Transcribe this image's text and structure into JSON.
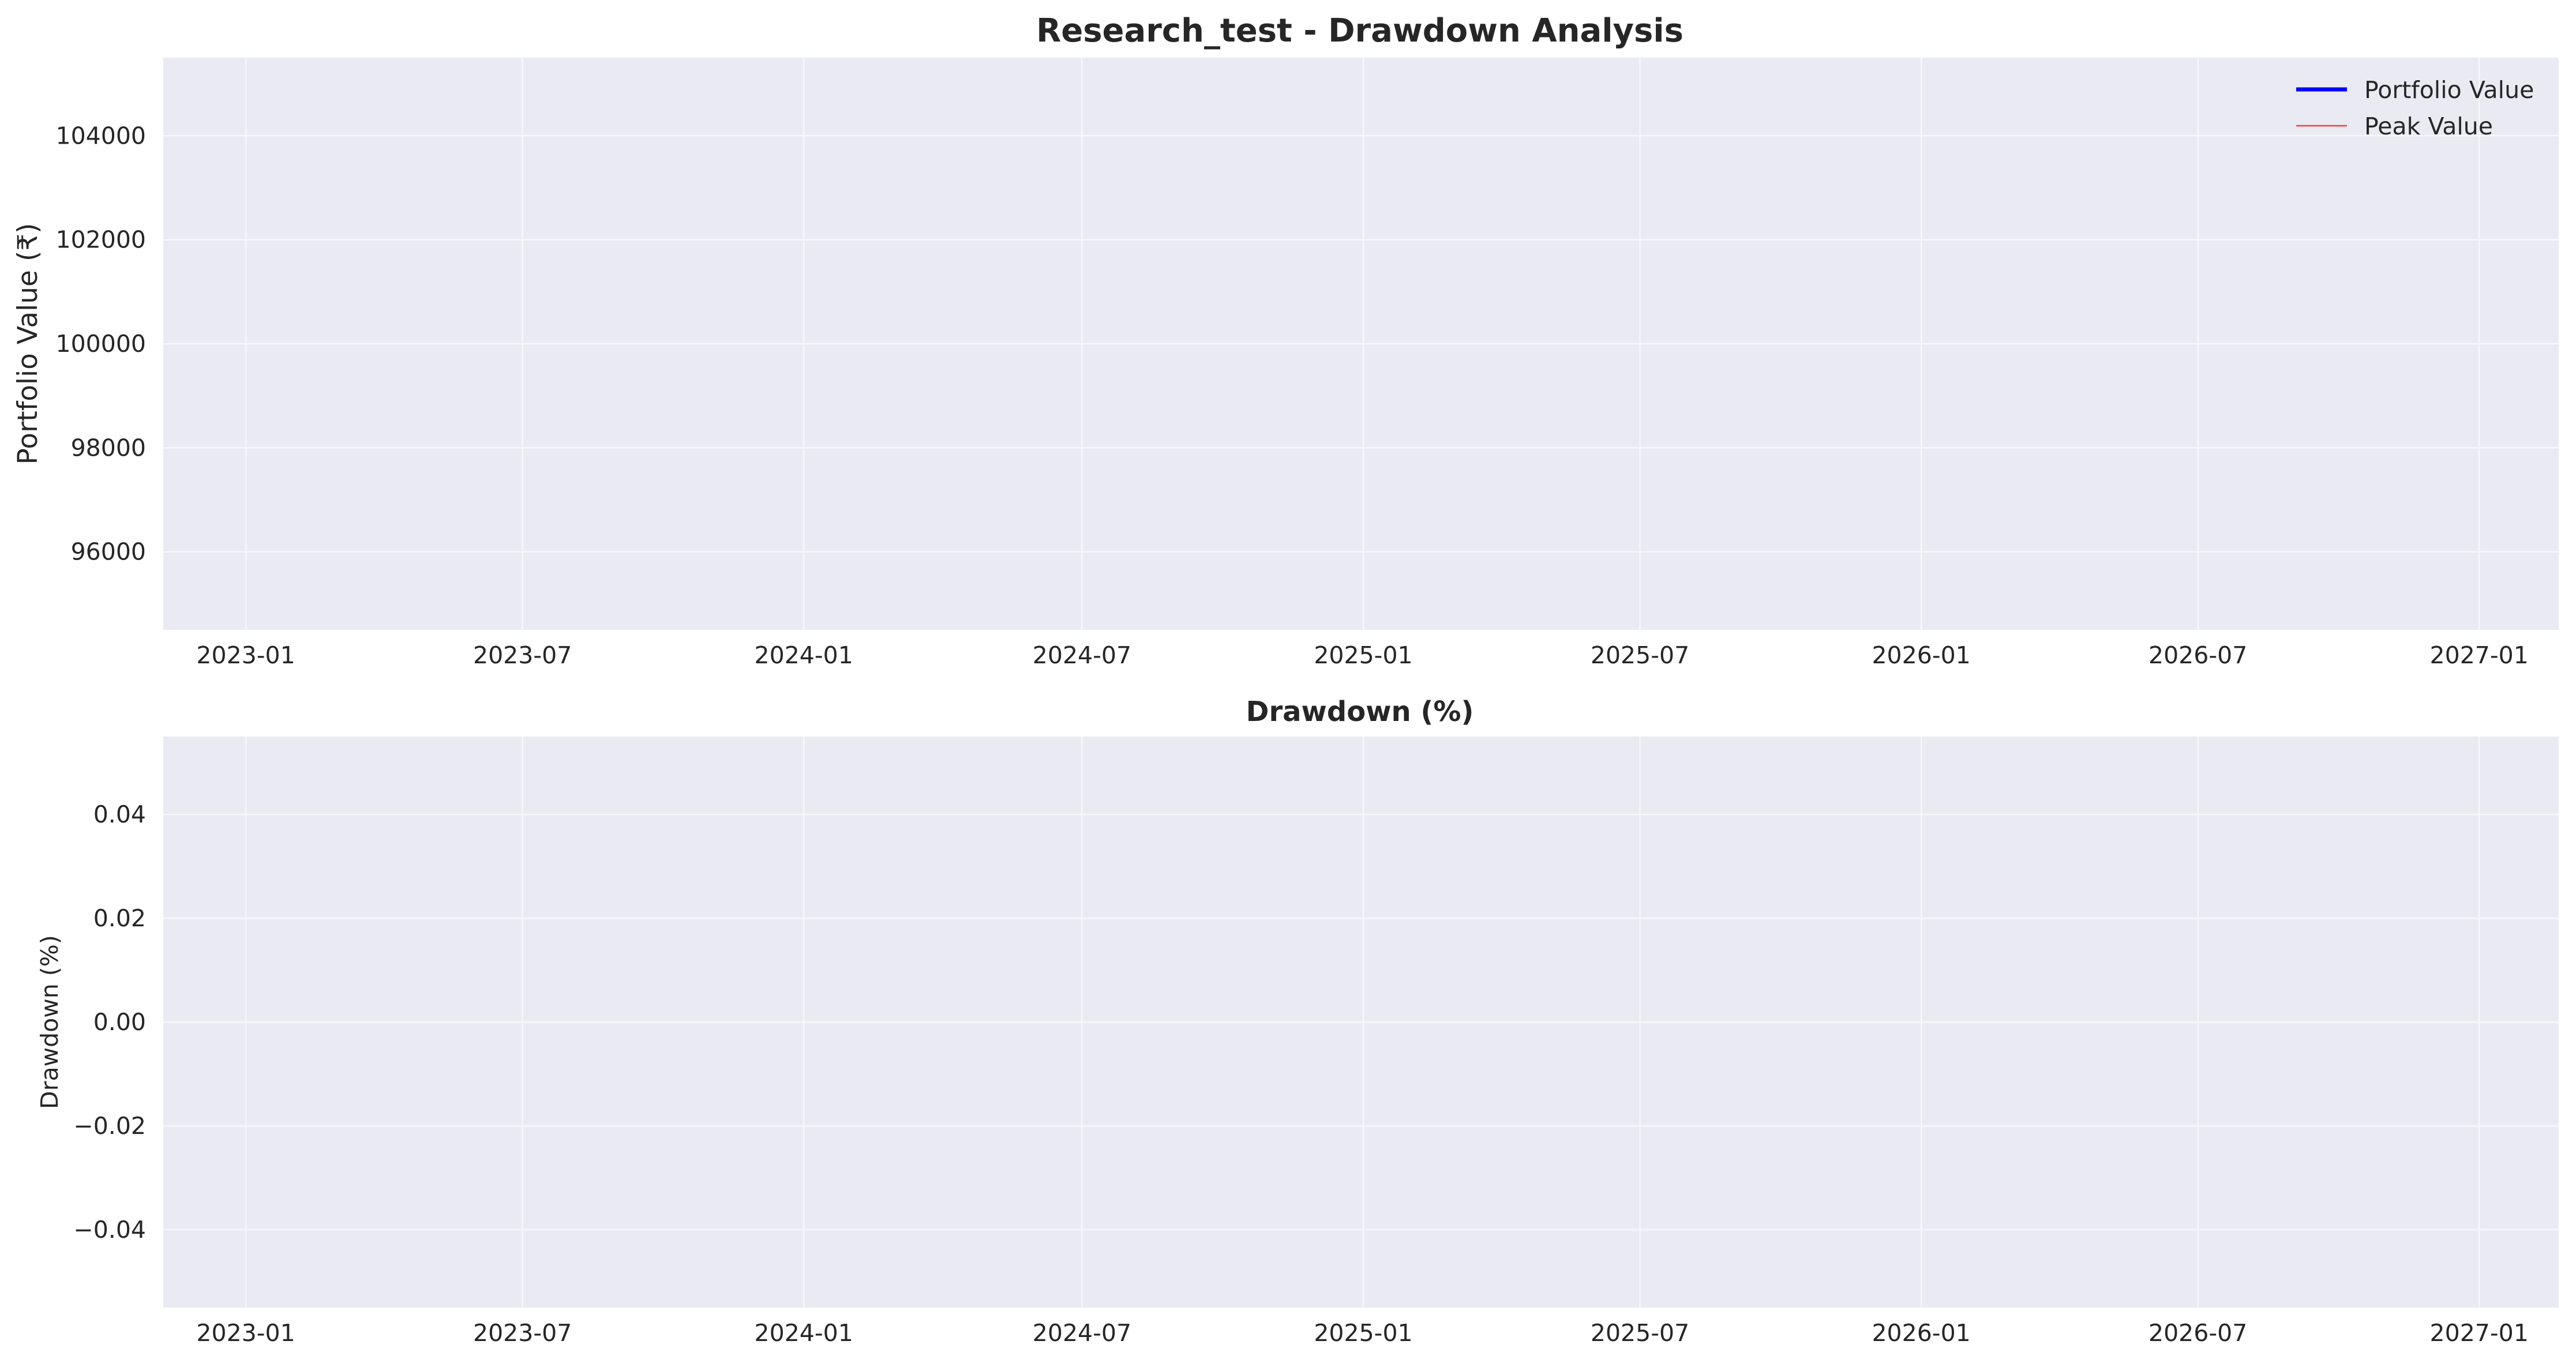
{
  "chart_data": [
    {
      "type": "line",
      "title": "Research_test - Drawdown Analysis",
      "xlabel": "",
      "ylabel": "Portfolio Value (₹)",
      "x_ticks": [
        "2023-01",
        "2023-07",
        "2024-01",
        "2024-07",
        "2025-01",
        "2025-07",
        "2026-01",
        "2026-07",
        "2027-01"
      ],
      "y_ticks": [
        "96000",
        "98000",
        "100000",
        "102000",
        "104000"
      ],
      "xlim": [
        "2022-11-08",
        "2027-02-22"
      ],
      "ylim": [
        94500,
        105500
      ],
      "grid": true,
      "legend_position": "top-right",
      "series": [
        {
          "name": "Portfolio Value",
          "color": "#0000ff",
          "x": [],
          "y": []
        },
        {
          "name": "Peak Value",
          "color": "#ff0000",
          "x": [],
          "y": []
        }
      ]
    },
    {
      "type": "area",
      "title": "Drawdown (%)",
      "xlabel": "",
      "ylabel": "Drawdown (%)",
      "x_ticks": [
        "2023-01",
        "2023-07",
        "2024-01",
        "2024-07",
        "2025-01",
        "2025-07",
        "2026-01",
        "2026-07",
        "2027-01"
      ],
      "y_ticks": [
        "−0.04",
        "−0.02",
        "0.00",
        "0.02",
        "0.04"
      ],
      "xlim": [
        "2022-11-08",
        "2027-02-22"
      ],
      "ylim": [
        -0.055,
        0.055
      ],
      "grid": true,
      "series": []
    }
  ]
}
